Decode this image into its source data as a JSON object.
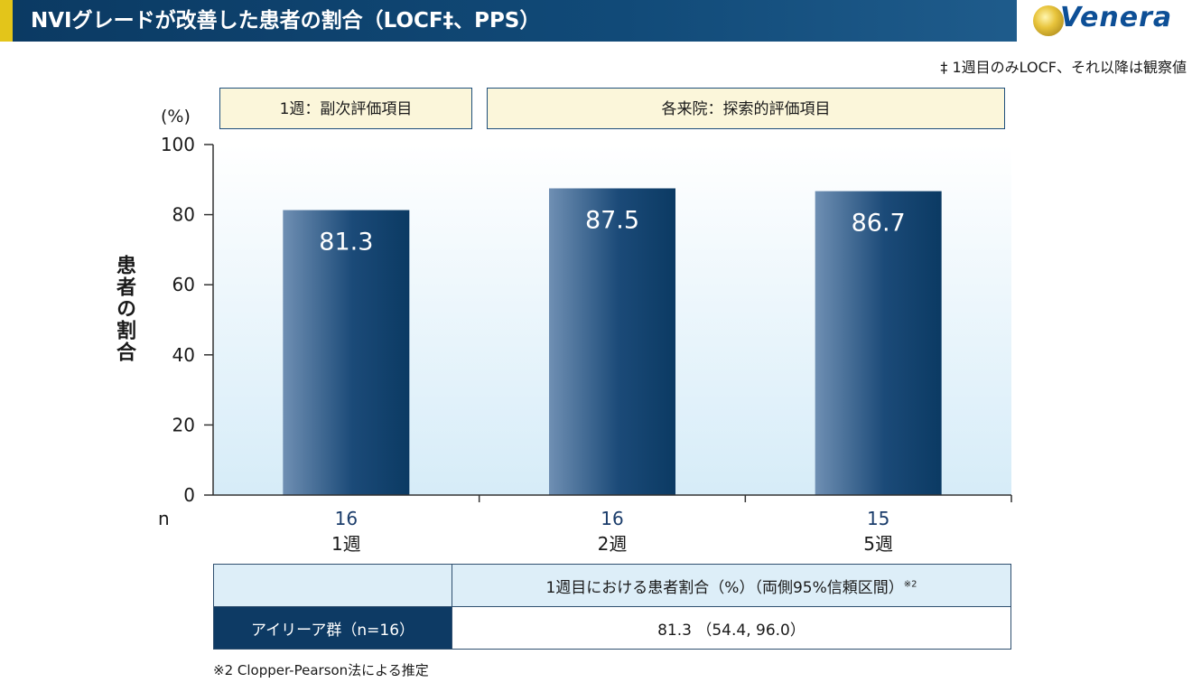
{
  "header": {
    "title": "NVIグレードが改善した患者の割合（LOCF‡、PPS）",
    "logo_text": "Venera",
    "logo_icon": "globe-logo-icon"
  },
  "footnote_top": "‡ 1週目のみLOCF、それ以降は観察値",
  "category_boxes": [
    "1週：副次評価項目",
    "各来院：探索的評価項目"
  ],
  "unit_label": "(%)",
  "n_label": "n",
  "colors": {
    "bar_dark": "#0b3a63",
    "bar_light": "#6f8fb3",
    "title_bg": "#0b3a63",
    "accent": "#e3c51a",
    "box_bg": "#fbf6da",
    "plot_bg": "#d6ecf8"
  },
  "chart_data": {
    "type": "bar",
    "categories": [
      "1週",
      "2週",
      "5週"
    ],
    "values": [
      81.3,
      87.5,
      86.7
    ],
    "value_labels": [
      "81.3",
      "87.5",
      "86.7"
    ],
    "n": [
      "16",
      "16",
      "15"
    ],
    "title": "",
    "xlabel": "",
    "ylabel": "患者の割合",
    "ylim": [
      0,
      100
    ],
    "yticks": [
      "0",
      "20",
      "40",
      "60",
      "80",
      "100"
    ],
    "grid": false
  },
  "table": {
    "header": "1週目における患者割合（%）（両側95%信頼区間）",
    "header_sup": "※2",
    "group_label": "アイリーア群（n=16）",
    "value": "81.3 （54.4, 96.0）"
  },
  "footnote_bottom": "※2  Clopper-Pearson法による推定"
}
